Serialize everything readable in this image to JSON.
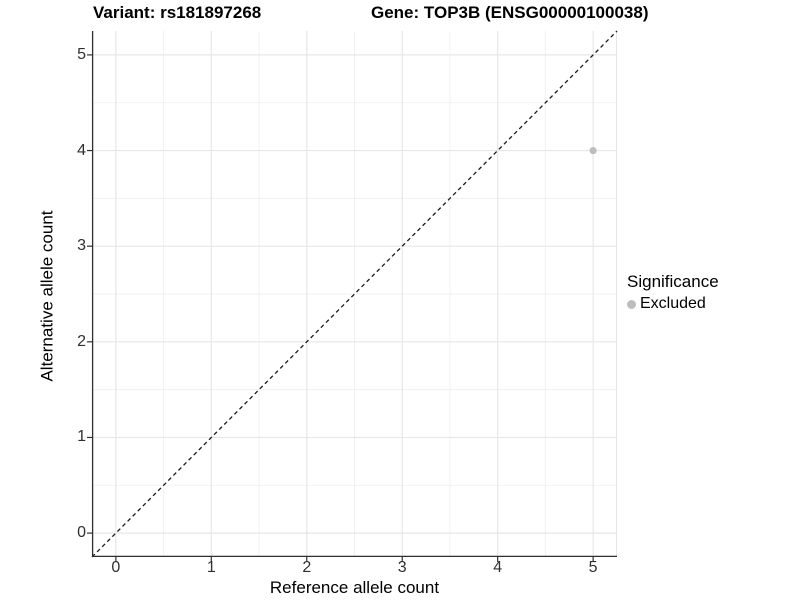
{
  "chart_data": {
    "type": "scatter",
    "title_left": "Variant: rs181897268",
    "title_right": "Gene: TOP3B (ENSG00000100038)",
    "xlabel": "Reference allele count",
    "ylabel": "Alternative allele count",
    "xlim": [
      -0.25,
      5.25
    ],
    "ylim": [
      -0.25,
      5.25
    ],
    "xticks": [
      0,
      1,
      2,
      3,
      4,
      5
    ],
    "yticks": [
      0,
      1,
      2,
      3,
      4,
      5
    ],
    "minor_gridlines_x": [
      0.5,
      1.5,
      2.5,
      3.5,
      4.5
    ],
    "minor_gridlines_y": [
      0.5,
      1.5,
      2.5,
      3.5,
      4.5
    ],
    "grid": true,
    "identity_line": {
      "slope": 1,
      "intercept": 0,
      "style": "dashed",
      "color": "#1a1a1a"
    },
    "series": [
      {
        "name": "Excluded",
        "color": "#bdbdbd",
        "points": [
          {
            "x": 5,
            "y": 4
          }
        ]
      }
    ],
    "legend": {
      "title": "Significance",
      "position": "right",
      "items": [
        {
          "label": "Excluded",
          "color": "#bdbdbd"
        }
      ]
    },
    "colors": {
      "major_grid": "#e7e7e7",
      "minor_grid": "#f0f0f0",
      "axis_line": "#2f2f2f",
      "panel_edge": "#e7e7e7",
      "background": "#ffffff"
    }
  }
}
